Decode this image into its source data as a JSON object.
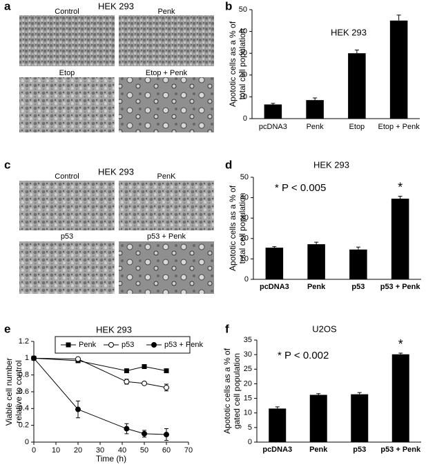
{
  "panel_labels": [
    "a",
    "b",
    "c",
    "d",
    "e",
    "f"
  ],
  "image_panels": [
    {
      "title": "HEK 293",
      "captions": [
        "Control",
        "Penk",
        "Etop",
        "Etop + Penk"
      ]
    },
    {
      "title": "HEK 293",
      "captions": [
        "Control",
        "PenK",
        "p53",
        "p53 + Penk"
      ]
    }
  ],
  "chart_data": [
    {
      "type": "bar",
      "title": "HEK 293",
      "ylabel": [
        "Apototic cells as a % of",
        "total cell population"
      ],
      "categories": [
        "pcDNA3",
        "Penk",
        "Etop",
        "Etop + Penk"
      ],
      "values": [
        6.5,
        8.5,
        30,
        45
      ],
      "errors": [
        0.5,
        1,
        1.5,
        2.5
      ],
      "color": "#000000",
      "ylim": [
        0,
        50
      ],
      "yticks": [
        0,
        10,
        20,
        30,
        40,
        50
      ]
    },
    {
      "type": "bar",
      "title": "HEK 293",
      "ylabel": [
        "Apototic cells as a % of",
        "total cell population"
      ],
      "annotation": "* P < 0.005",
      "stars": [
        {
          "text": "*",
          "category": "p53 + Penk"
        }
      ],
      "categories": [
        "pcDNA3",
        "Penk",
        "p53",
        "p53 + Penk"
      ],
      "values": [
        15.5,
        17.2,
        14.6,
        39.5
      ],
      "errors": [
        0.5,
        1,
        1.2,
        1.2
      ],
      "color": "#000000",
      "ylim": [
        0,
        50
      ],
      "yticks": [
        0,
        10,
        20,
        30,
        40,
        50
      ]
    },
    {
      "type": "line",
      "title": "HEK 293",
      "xlabel": "Time (h)",
      "ylabel": [
        "Viable cell number",
        "relative to control"
      ],
      "x": [
        0,
        20,
        42,
        50,
        60
      ],
      "series": [
        {
          "name": "Penk",
          "color": "#000000",
          "marker": "square",
          "values": [
            1,
            0.97,
            0.85,
            0.9,
            0.85
          ],
          "errors": [
            0,
            0.01,
            0.01,
            0.01,
            0.02
          ]
        },
        {
          "name": "p53",
          "color": "#000000",
          "marker": "open-circle",
          "values": [
            1,
            0.99,
            0.72,
            0.7,
            0.65
          ],
          "errors": [
            0,
            0.01,
            0.03,
            0.01,
            0.04
          ]
        },
        {
          "name": "p53 + Penk",
          "color": "#000000",
          "marker": "circle",
          "values": [
            1,
            0.39,
            0.16,
            0.1,
            0.09
          ],
          "errors": [
            0,
            0.1,
            0.06,
            0.04,
            0.07
          ]
        }
      ],
      "xlim": [
        0,
        70
      ],
      "xticks": [
        0,
        10,
        20,
        30,
        40,
        50,
        60,
        70
      ],
      "ylim": [
        0,
        1.2
      ],
      "yticks": [
        0,
        0.2,
        0.4,
        0.6,
        0.8,
        1,
        1.2
      ],
      "legend": "top"
    },
    {
      "type": "bar",
      "title": "U2OS",
      "ylabel": [
        "Apototic cells as a % of",
        "gated cell population"
      ],
      "annotation": "* P < 0.002",
      "stars": [
        {
          "text": "*",
          "category": "p53 + Penk"
        }
      ],
      "categories": [
        "pcDNA3",
        "Penk",
        "p53",
        "p53 + Penk"
      ],
      "values": [
        11.5,
        16.2,
        16.4,
        30.1
      ],
      "errors": [
        0.6,
        0.4,
        0.6,
        0.4
      ],
      "color": "#000000",
      "ylim": [
        0,
        35
      ],
      "yticks": [
        0,
        5,
        10,
        15,
        20,
        25,
        30,
        35
      ]
    }
  ]
}
